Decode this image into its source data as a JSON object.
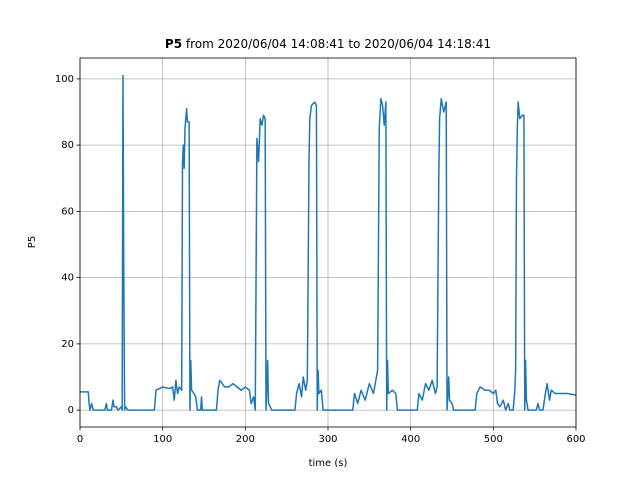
{
  "chart_data": {
    "type": "line",
    "title": {
      "name": "P5",
      "text": "from 2020/06/04 14:08:41 to 2020/06/04 14:18:41"
    },
    "x_label": "time (s)",
    "y_label": "P5",
    "color": "#1f77b4",
    "grid": true,
    "xlim": [
      0,
      600
    ],
    "xticks": [
      0,
      100,
      200,
      300,
      400,
      500,
      600
    ],
    "ylim": [
      -5.1,
      106.3
    ],
    "yticks": [
      0,
      20,
      40,
      60,
      80,
      100
    ],
    "x": [
      0,
      10,
      11,
      12,
      14,
      16,
      30,
      32,
      33,
      38,
      40,
      41,
      44,
      46,
      50,
      51,
      52,
      53,
      54,
      55,
      58,
      90,
      92,
      100,
      108,
      112,
      114,
      116,
      118,
      120,
      123,
      124,
      125,
      126,
      127,
      128,
      129,
      130,
      132,
      133,
      134,
      135,
      138,
      140,
      142,
      146,
      147,
      148,
      165,
      167,
      169,
      175,
      180,
      185,
      195,
      200,
      205,
      207,
      210,
      212,
      214,
      216,
      218,
      220,
      222,
      224,
      225,
      227,
      228,
      230,
      232,
      260,
      262,
      265,
      268,
      270,
      273,
      275,
      277,
      278,
      280,
      284,
      286,
      287,
      288,
      289,
      292,
      294,
      330,
      332,
      336,
      340,
      345,
      350,
      355,
      360,
      362,
      364,
      366,
      368,
      370,
      371,
      372,
      373,
      378,
      382,
      384,
      408,
      410,
      414,
      418,
      422,
      426,
      430,
      432,
      434,
      435,
      437,
      440,
      443,
      444,
      446,
      447,
      450,
      452,
      478,
      480,
      484,
      490,
      495,
      500,
      503,
      505,
      508,
      512,
      515,
      518,
      520,
      524,
      526,
      527,
      528,
      529,
      530,
      532,
      535,
      537,
      538,
      539,
      540,
      542,
      552,
      554,
      556,
      560,
      563,
      565,
      568,
      570,
      575,
      580,
      590,
      600
    ],
    "values": [
      5.5,
      5.5,
      2,
      0,
      2,
      0,
      0,
      2,
      0,
      0,
      3,
      1,
      1,
      0,
      1,
      0,
      101,
      40,
      0,
      1,
      0,
      0,
      6,
      7,
      6.5,
      7,
      3,
      9,
      5,
      7,
      6,
      75,
      80,
      73,
      85,
      88,
      91,
      87,
      87,
      0,
      15,
      6,
      5,
      4,
      0,
      0,
      4,
      0,
      0,
      6,
      9,
      7,
      7,
      8,
      6,
      7,
      6,
      2,
      4,
      0,
      82,
      75,
      88,
      86,
      89,
      88,
      0,
      15,
      2,
      1,
      0,
      0,
      5,
      8,
      4,
      10,
      6,
      9,
      75,
      88,
      92,
      93,
      92,
      0,
      12,
      5,
      6,
      0,
      0,
      5,
      2,
      6,
      3,
      8,
      5,
      12,
      85,
      94,
      92,
      86,
      93,
      0,
      15,
      5,
      6,
      5,
      0,
      0,
      5,
      3,
      8,
      6,
      9,
      5,
      7,
      70,
      88,
      94,
      90,
      93,
      0,
      10,
      3,
      2,
      0,
      0,
      5,
      7,
      6,
      6,
      5,
      6,
      2,
      1,
      3,
      0,
      2,
      0,
      0,
      6,
      12,
      70,
      85,
      93,
      88,
      89,
      89,
      0,
      15,
      3,
      0,
      0,
      2,
      0,
      0,
      5,
      8,
      3,
      6,
      5,
      5,
      5,
      4.5
    ]
  }
}
